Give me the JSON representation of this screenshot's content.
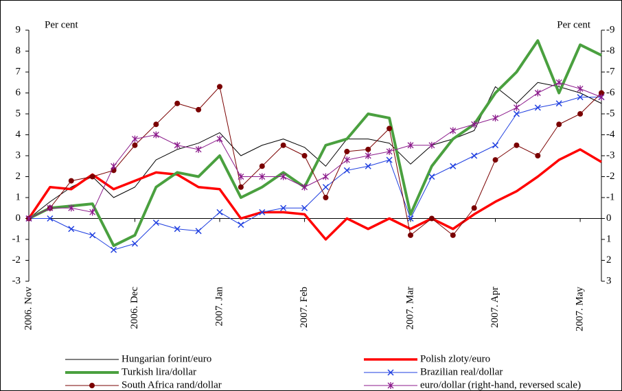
{
  "chart_data": {
    "type": "line",
    "y_label": "Per cent",
    "y2_label": "Per cent",
    "categories": [
      "2006. Nov",
      null,
      null,
      null,
      null,
      "2006. Dec",
      null,
      null,
      null,
      "2007. Jan",
      null,
      null,
      null,
      "2007. Feb",
      null,
      null,
      null,
      null,
      "2007. Mar",
      null,
      null,
      null,
      "2007. Apr",
      null,
      null,
      null,
      "2007. May",
      null
    ],
    "ylim": [
      -3,
      9
    ],
    "yticks": [
      -3,
      -2,
      -1,
      0,
      1,
      2,
      3,
      4,
      5,
      6,
      7,
      8,
      9
    ],
    "y2lim": [
      3,
      -9
    ],
    "y2ticks": [
      3,
      2,
      1,
      0,
      -1,
      -2,
      -3,
      -4,
      -5,
      -6,
      -7,
      -8,
      -9
    ],
    "series": [
      {
        "name": "Hungarian forint/euro",
        "color": "#000000",
        "line_width": 1,
        "marker": "none",
        "values": [
          0,
          0.8,
          1.5,
          2,
          1,
          1.5,
          2.8,
          3.3,
          3.6,
          4.1,
          3.0,
          3.5,
          3.8,
          3.4,
          2.5,
          3.8,
          3.8,
          3.6,
          2.6,
          3.5,
          3.8,
          4.2,
          6.3,
          5.5,
          6.5,
          6.3,
          6.0,
          5.5
        ]
      },
      {
        "name": "Polish zloty/euro",
        "color": "#ff0000",
        "line_width": 3.5,
        "marker": "none",
        "values": [
          0,
          1.5,
          1.4,
          2.1,
          1.4,
          1.8,
          2.2,
          2.1,
          1.5,
          1.4,
          0,
          0.3,
          0.3,
          0.2,
          -1.0,
          0,
          -0.5,
          0,
          -0.5,
          0,
          -0.5,
          0.2,
          0.8,
          1.3,
          2.0,
          2.8,
          3.3,
          2.7
        ]
      },
      {
        "name": "Turkish lira/dollar",
        "color": "#4aa03f",
        "line_width": 4,
        "marker": "none",
        "values": [
          0,
          0.5,
          0.6,
          0.7,
          -1.3,
          -0.8,
          1.5,
          2.2,
          2.0,
          3.0,
          1.0,
          1.5,
          2.2,
          1.5,
          3.5,
          3.8,
          5.0,
          4.8,
          0.2,
          2.5,
          3.8,
          4.5,
          6.0,
          7.0,
          8.5,
          6.0,
          8.3,
          7.8
        ]
      },
      {
        "name": "Brazilian real/dollar",
        "color": "#1f3fe0",
        "line_width": 1,
        "marker": "x",
        "values": [
          0,
          0,
          -0.5,
          -0.8,
          -1.5,
          -1.2,
          -0.2,
          -0.5,
          -0.6,
          0.3,
          -0.3,
          0.3,
          0.5,
          0.5,
          1.5,
          2.3,
          2.5,
          2.8,
          0,
          2.0,
          2.5,
          3.0,
          3.5,
          5.0,
          5.3,
          5.5,
          5.8,
          5.8
        ]
      },
      {
        "name": "South Africa rand/dollar",
        "color": "#7a0000",
        "line_width": 1,
        "marker": "circle",
        "values": [
          0,
          0.5,
          1.8,
          2.0,
          2.3,
          3.5,
          4.5,
          5.5,
          5.2,
          6.3,
          1.5,
          2.5,
          3.5,
          3.0,
          1.0,
          3.2,
          3.3,
          4.3,
          -0.8,
          0,
          -0.8,
          0.5,
          2.8,
          3.5,
          3.0,
          4.5,
          5.0,
          6.0
        ]
      },
      {
        "name": "euro/dollar (right-hand, reversed scale)",
        "color": "#8b1a8b",
        "line_width": 1,
        "marker": "star",
        "axis": "y2",
        "values": [
          0,
          -0.5,
          -0.5,
          -0.3,
          -2.5,
          -3.8,
          -4.0,
          -3.5,
          -3.3,
          -3.8,
          -2.0,
          -2.0,
          -2.0,
          -1.5,
          -2.0,
          -2.8,
          -3.0,
          -3.2,
          -3.5,
          -3.5,
          -4.2,
          -4.5,
          -4.8,
          -5.3,
          -6.0,
          -6.5,
          -6.2,
          -5.8
        ]
      }
    ]
  }
}
